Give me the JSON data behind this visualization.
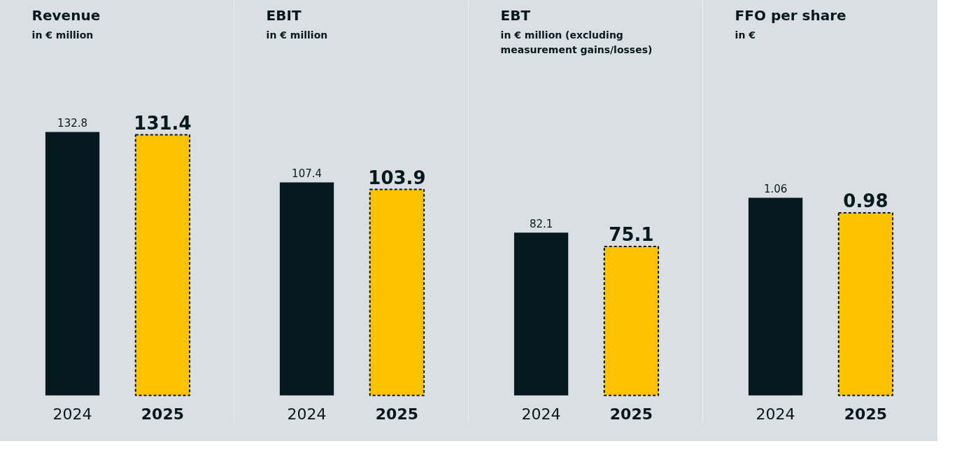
{
  "chart_data": [
    {
      "type": "bar",
      "title": "Revenue",
      "subtitle": "in € million",
      "categories": [
        "2024",
        "2025"
      ],
      "values": [
        132.8,
        131.4
      ],
      "colors": [
        "#06191f",
        "#fcc200"
      ],
      "data_labels": true
    },
    {
      "type": "bar",
      "title": "EBIT",
      "subtitle": "in € million",
      "categories": [
        "2024",
        "2025"
      ],
      "values": [
        107.4,
        103.9
      ],
      "colors": [
        "#06191f",
        "#fcc200"
      ],
      "data_labels": true
    },
    {
      "type": "bar",
      "title": "EBT",
      "subtitle": "in € million (excluding measurement gains/losses)",
      "categories": [
        "2024",
        "2025"
      ],
      "values": [
        82.1,
        75.1
      ],
      "colors": [
        "#06191f",
        "#fcc200"
      ],
      "data_labels": true
    },
    {
      "type": "bar",
      "title": "FFO per share",
      "subtitle": "in €",
      "categories": [
        "2024",
        "2025"
      ],
      "values": [
        1.06,
        0.98
      ],
      "colors": [
        "#06191f",
        "#fcc200"
      ],
      "data_labels": true
    }
  ]
}
